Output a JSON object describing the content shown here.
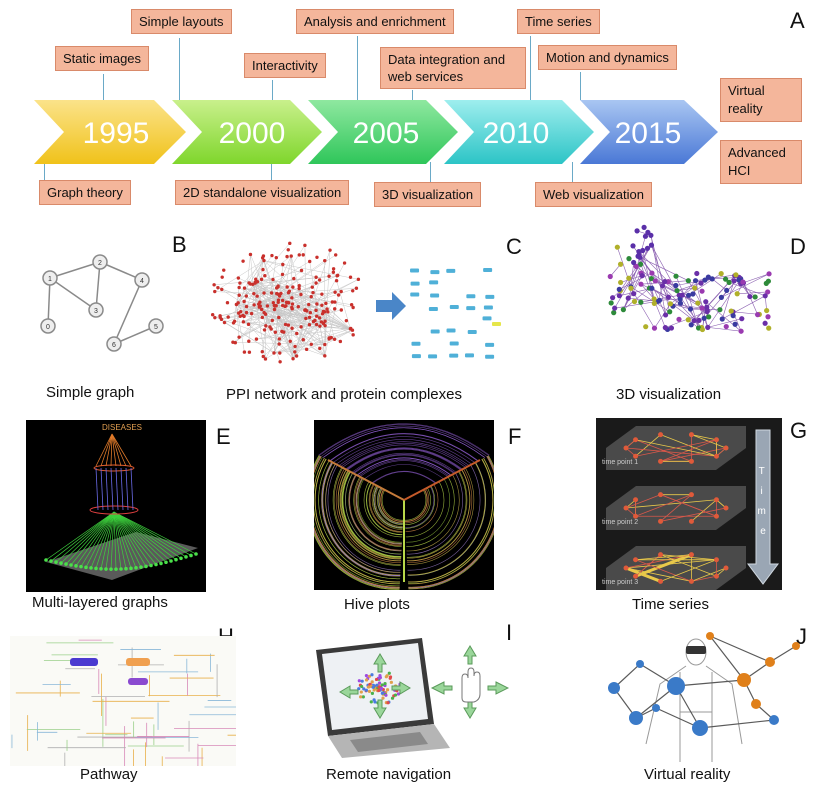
{
  "figure_letter_a": "A",
  "timeline": {
    "years": [
      "1995",
      "2000",
      "2005",
      "2010",
      "2015"
    ],
    "colors": [
      "#f5cf3a",
      "#9de04a",
      "#47d56a",
      "#48d4d0",
      "#5b8be0"
    ],
    "top_labels": [
      "Simple layouts",
      "Static images",
      "Interactivity",
      "Analysis and enrichment",
      "Data integration and web services",
      "Time series",
      "Motion and dynamics"
    ],
    "bottom_labels": [
      "Graph theory",
      "2D standalone visualization",
      "3D visualization",
      "Web visualization"
    ],
    "right_labels": [
      "Virtual reality",
      "Advanced HCI"
    ]
  },
  "panels": {
    "b": {
      "letter": "B",
      "caption": "Simple graph",
      "nodes": [
        "0",
        "1",
        "2",
        "3",
        "4",
        "5",
        "6"
      ]
    },
    "c": {
      "letter": "C",
      "caption": "PPI network and protein complexes"
    },
    "d": {
      "letter": "D",
      "caption": "3D visualization"
    },
    "e": {
      "letter": "E",
      "caption": "Multi-layered graphs",
      "inner_text": "DISEASES"
    },
    "f": {
      "letter": "F",
      "caption": "Hive plots"
    },
    "g": {
      "letter": "G",
      "caption": "Time series",
      "time_points": [
        "time point 1",
        "time point 2",
        "time point 3"
      ],
      "arrow_text": "Time"
    },
    "h": {
      "letter": "H",
      "caption": "Pathway"
    },
    "i": {
      "letter": "I",
      "caption": "Remote navigation"
    },
    "j": {
      "letter": "J",
      "caption": "Virtual reality"
    }
  }
}
